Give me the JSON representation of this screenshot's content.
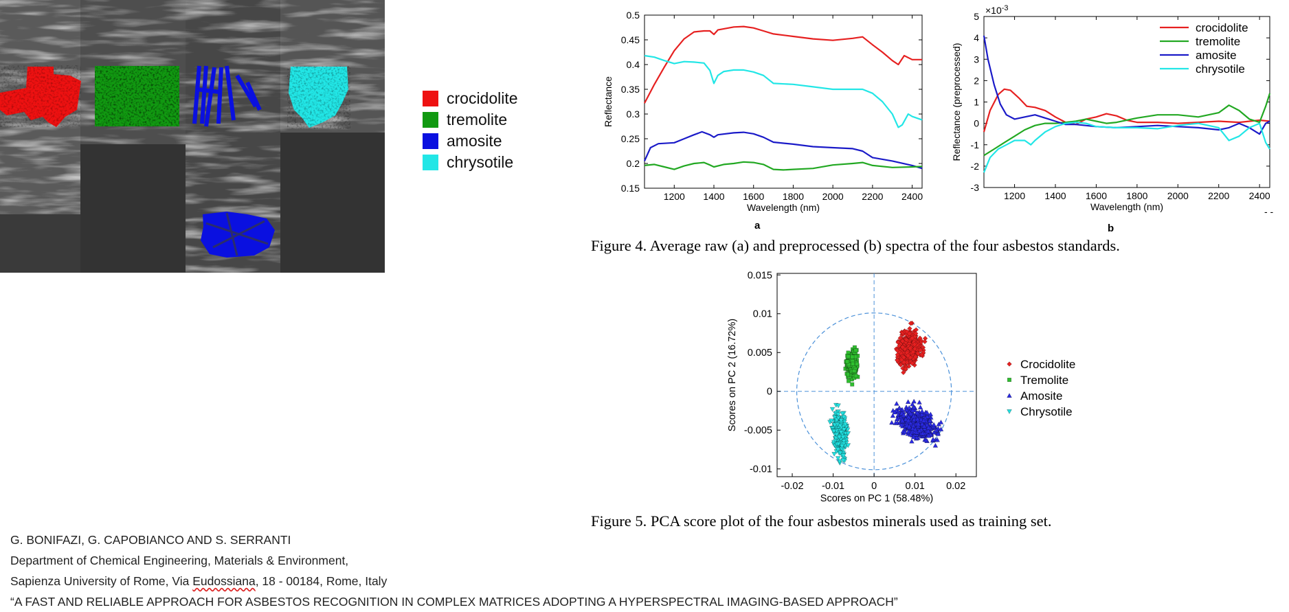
{
  "mosaic_legend": [
    {
      "label": "crocidolite",
      "color": "#ee1111"
    },
    {
      "label": "tremolite",
      "color": "#119911"
    },
    {
      "label": "amosite",
      "color": "#0a10e0"
    },
    {
      "label": "chrysotile",
      "color": "#22e6e6"
    }
  ],
  "figure4": {
    "caption": "Figure 4. Average raw (a) and preprocessed (b) spectra of the four asbestos standards.",
    "sublabel_a": "a",
    "sublabel_b": "b",
    "page_mark": "- -"
  },
  "figure5": {
    "caption": "Figure 5. PCA score plot of the four asbestos minerals used as training set."
  },
  "footer": {
    "authors": "G. BONIFAZI, G. CAPOBIANCO AND S. SERRANTI",
    "department": "Department of Chemical Engineering, Materials & Environment,",
    "address_prefix": "Sapienza University of Rome, Via ",
    "address_street": "Eudossiana",
    "address_suffix": ", 18 - 00184, Rome, Italy",
    "title": "“A FAST AND RELIABLE APPROACH FOR ASBESTOS RECOGNITION IN COMPLEX MATRICES ADOPTING A HYPERSPECTRAL IMAGING-BASED APPROACH”"
  },
  "chart_data": [
    {
      "type": "line",
      "title": "",
      "xlabel": "Wavelength  (nm)",
      "ylabel": "Reflectance",
      "xlim": [
        1050,
        2450
      ],
      "ylim": [
        0.15,
        0.5
      ],
      "xticks": [
        1200,
        1400,
        1600,
        1800,
        2000,
        2200,
        2400
      ],
      "yticks": [
        0.15,
        0.2,
        0.25,
        0.3,
        0.35,
        0.4,
        0.45,
        0.5
      ],
      "ytick_labels": [
        "0.15",
        "0.2",
        "0.25",
        "0.3",
        "0.35",
        "0.4",
        "0.45",
        "0.5"
      ],
      "grid": false,
      "series": [
        {
          "color": "#e62020",
          "x": [
            1050,
            1100,
            1150,
            1200,
            1250,
            1300,
            1350,
            1380,
            1400,
            1420,
            1500,
            1550,
            1600,
            1650,
            1700,
            1800,
            1900,
            2000,
            2100,
            2150,
            2200,
            2250,
            2300,
            2330,
            2360,
            2400,
            2450
          ],
          "y": [
            0.322,
            0.36,
            0.395,
            0.428,
            0.452,
            0.466,
            0.468,
            0.468,
            0.461,
            0.47,
            0.476,
            0.477,
            0.474,
            0.468,
            0.462,
            0.457,
            0.452,
            0.449,
            0.453,
            0.456,
            0.44,
            0.425,
            0.408,
            0.4,
            0.418,
            0.41,
            0.41
          ]
        },
        {
          "color": "#22e6e6",
          "x": [
            1050,
            1100,
            1150,
            1200,
            1250,
            1300,
            1350,
            1380,
            1400,
            1420,
            1450,
            1500,
            1550,
            1600,
            1650,
            1700,
            1800,
            1900,
            2000,
            2100,
            2150,
            2200,
            2250,
            2300,
            2330,
            2350,
            2380,
            2400,
            2450
          ],
          "y": [
            0.418,
            0.415,
            0.408,
            0.402,
            0.406,
            0.405,
            0.403,
            0.388,
            0.362,
            0.378,
            0.386,
            0.389,
            0.389,
            0.385,
            0.378,
            0.362,
            0.36,
            0.355,
            0.35,
            0.35,
            0.35,
            0.342,
            0.325,
            0.3,
            0.273,
            0.278,
            0.3,
            0.295,
            0.288
          ]
        },
        {
          "color": "#1a1ac8",
          "x": [
            1050,
            1080,
            1120,
            1200,
            1250,
            1300,
            1340,
            1380,
            1400,
            1420,
            1500,
            1550,
            1600,
            1650,
            1700,
            1800,
            1900,
            2000,
            2100,
            2150,
            2200,
            2300,
            2400,
            2450
          ],
          "y": [
            0.205,
            0.232,
            0.24,
            0.242,
            0.25,
            0.258,
            0.264,
            0.258,
            0.253,
            0.258,
            0.262,
            0.263,
            0.26,
            0.253,
            0.243,
            0.239,
            0.234,
            0.232,
            0.23,
            0.225,
            0.212,
            0.205,
            0.196,
            0.19
          ]
        },
        {
          "color": "#22a822",
          "x": [
            1050,
            1100,
            1150,
            1200,
            1250,
            1300,
            1350,
            1380,
            1400,
            1450,
            1500,
            1550,
            1600,
            1650,
            1700,
            1750,
            1800,
            1900,
            2000,
            2100,
            2150,
            2200,
            2300,
            2400,
            2450
          ],
          "y": [
            0.196,
            0.198,
            0.193,
            0.188,
            0.195,
            0.2,
            0.202,
            0.197,
            0.193,
            0.198,
            0.2,
            0.203,
            0.202,
            0.198,
            0.188,
            0.187,
            0.188,
            0.19,
            0.197,
            0.2,
            0.202,
            0.196,
            0.192,
            0.193,
            0.194
          ]
        }
      ]
    },
    {
      "type": "line",
      "title": "",
      "xlabel": "Wavelength  (nm)",
      "ylabel": "Reflectance (preprocessed)",
      "exponent_label": "×10",
      "exponent_power": "-3",
      "xlim": [
        1050,
        2450
      ],
      "ylim": [
        -3,
        5
      ],
      "xticks": [
        1200,
        1400,
        1600,
        1800,
        2000,
        2200,
        2400
      ],
      "yticks": [
        -3,
        -2,
        -1,
        0,
        1,
        2,
        3,
        4,
        5
      ],
      "grid": false,
      "legend_position": "top-right",
      "series": [
        {
          "name": "crocidolite",
          "color": "#e62020",
          "x": [
            1050,
            1080,
            1120,
            1150,
            1180,
            1220,
            1260,
            1300,
            1350,
            1400,
            1450,
            1500,
            1550,
            1600,
            1650,
            1700,
            1750,
            1800,
            1900,
            2000,
            2100,
            2200,
            2300,
            2400,
            2450
          ],
          "y": [
            -0.4,
            0.6,
            1.35,
            1.6,
            1.55,
            1.2,
            0.8,
            0.75,
            0.6,
            0.3,
            0.05,
            -0.05,
            0.2,
            0.3,
            0.45,
            0.35,
            0.15,
            0.05,
            0.05,
            0.0,
            0.05,
            0.1,
            0.05,
            0.15,
            0.1
          ]
        },
        {
          "name": "tremolite",
          "color": "#22a822",
          "x": [
            1050,
            1100,
            1150,
            1200,
            1250,
            1300,
            1350,
            1400,
            1450,
            1500,
            1550,
            1600,
            1650,
            1700,
            1800,
            1900,
            2000,
            2100,
            2200,
            2250,
            2300,
            2350,
            2400,
            2430,
            2450
          ],
          "y": [
            -1.5,
            -1.2,
            -0.9,
            -0.6,
            -0.3,
            -0.1,
            0.0,
            0.0,
            0.05,
            0.1,
            0.2,
            0.1,
            0.0,
            0.05,
            0.25,
            0.4,
            0.4,
            0.3,
            0.5,
            0.85,
            0.6,
            0.2,
            0.05,
            0.8,
            1.4
          ]
        },
        {
          "name": "amosite",
          "color": "#1a1ac8",
          "x": [
            1050,
            1070,
            1100,
            1130,
            1160,
            1200,
            1250,
            1300,
            1350,
            1400,
            1450,
            1500,
            1600,
            1700,
            1800,
            1900,
            2000,
            2100,
            2200,
            2250,
            2300,
            2350,
            2400,
            2430,
            2450
          ],
          "y": [
            4.1,
            3.0,
            1.8,
            0.9,
            0.4,
            0.2,
            0.3,
            0.4,
            0.25,
            0.1,
            -0.05,
            -0.05,
            -0.15,
            -0.2,
            -0.15,
            -0.1,
            -0.15,
            -0.2,
            -0.3,
            -0.2,
            0.0,
            -0.2,
            -0.5,
            0.0,
            0.1
          ]
        },
        {
          "name": "chrysotile",
          "color": "#22e6e6",
          "x": [
            1050,
            1080,
            1120,
            1160,
            1200,
            1250,
            1280,
            1300,
            1350,
            1400,
            1450,
            1500,
            1550,
            1600,
            1700,
            1800,
            1900,
            2000,
            2100,
            2200,
            2250,
            2300,
            2350,
            2400,
            2430,
            2450
          ],
          "y": [
            -2.3,
            -1.6,
            -1.2,
            -1.0,
            -0.8,
            -0.8,
            -1.0,
            -0.8,
            -0.4,
            -0.15,
            0.0,
            0.05,
            0.0,
            -0.15,
            -0.2,
            -0.2,
            -0.25,
            -0.1,
            0.0,
            -0.2,
            -0.8,
            -0.6,
            -0.2,
            0.0,
            -0.9,
            -1.2
          ]
        }
      ]
    },
    {
      "type": "scatter",
      "title": "",
      "xlabel": "Scores on PC 1 (58.48%)",
      "ylabel": "Scores on PC 2 (16.72%)",
      "xlim": [
        -0.025,
        0.025
      ],
      "ylim": [
        -0.011,
        0.015
      ],
      "xticks": [
        -0.02,
        -0.01,
        0,
        0.01,
        0.02
      ],
      "xtick_labels": [
        "-0.02",
        "-0.01",
        "0",
        "0.01",
        "0.02"
      ],
      "yticks": [
        -0.01,
        -0.005,
        0,
        0.005,
        0.01,
        0.015
      ],
      "ytick_labels": [
        "-0.01",
        "-0.005",
        "0",
        "0.005",
        "0.01",
        "0.015"
      ],
      "grid": false,
      "legend_position": "right",
      "confidence_ellipse": {
        "center": [
          0,
          0
        ],
        "radius_x": 0.0189,
        "radius_y": 0.0101,
        "color": "#4a90d9"
      },
      "series": [
        {
          "name": "Crocidolite",
          "marker": "diamond",
          "color": "#e62020",
          "center": [
            0.0085,
            0.0055
          ],
          "spread": [
            0.0042,
            0.0028
          ],
          "count": 420,
          "tilt": 0.55
        },
        {
          "name": "Tremolite",
          "marker": "square",
          "color": "#2fbf2f",
          "center": [
            -0.0053,
            0.0035
          ],
          "spread": [
            0.0016,
            0.0022
          ],
          "count": 300,
          "tilt": -0.35
        },
        {
          "name": "Amosite",
          "marker": "triangle-up",
          "color": "#2a2ae0",
          "center": [
            0.0105,
            -0.0042
          ],
          "spread": [
            0.0065,
            0.0025
          ],
          "count": 520,
          "tilt": -0.2
        },
        {
          "name": "Chrysotile",
          "marker": "triangle-down",
          "color": "#22e0e0",
          "center": [
            -0.0082,
            -0.0055
          ],
          "spread": [
            0.0024,
            0.0038
          ],
          "count": 320,
          "tilt": 0.1
        }
      ]
    }
  ]
}
